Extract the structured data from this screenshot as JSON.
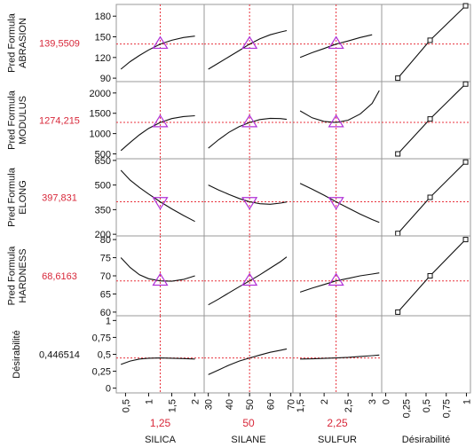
{
  "colors": {
    "current_value": "#d8283a",
    "marker": "#b030d8",
    "crosshair": "#e8323c",
    "curve": "#111111",
    "frame": "#999999",
    "text": "#111111"
  },
  "chart_data": {
    "type": "line",
    "factors": [
      {
        "id": "silica",
        "name": "SILICA",
        "current": 1.25,
        "current_label": "1,25",
        "range": [
          0.3,
          2.2
        ],
        "ticks": [
          0.5,
          1,
          1.5,
          2
        ],
        "tick_labels": [
          "0,5",
          "1",
          "1,5",
          "2"
        ]
      },
      {
        "id": "silane",
        "name": "SILANE",
        "current": 50,
        "current_label": "50",
        "range": [
          28,
          71
        ],
        "ticks": [
          30,
          40,
          50,
          60,
          70
        ],
        "tick_labels": [
          "30",
          "40",
          "50",
          "60",
          "70"
        ]
      },
      {
        "id": "sulfur",
        "name": "SULFUR",
        "current": 2.25,
        "current_label": "2,25",
        "range": [
          1.35,
          3.2
        ],
        "ticks": [
          1.5,
          2,
          2.5,
          3
        ],
        "tick_labels": [
          "1,5",
          "2",
          "2,5",
          "3"
        ]
      },
      {
        "id": "desirability",
        "name": "Désirabilité",
        "range": [
          -0.05,
          1.05
        ],
        "ticks": [
          0,
          0.25,
          0.5,
          0.75,
          1
        ],
        "tick_labels": [
          "0",
          "0,25",
          "0,5",
          "0,75",
          "1"
        ]
      }
    ],
    "responses": [
      {
        "id": "abrasion",
        "label_line1": "Pred Formula",
        "label_line2": "ABRASION",
        "current_label": "139,5509",
        "current": 139.55,
        "ylim": [
          85,
          197
        ],
        "ticks": [
          90,
          120,
          150,
          180
        ],
        "tick_labels": [
          "90",
          "120",
          "150",
          "180"
        ],
        "traces": [
          {
            "x": [
              0.4,
              0.6,
              0.8,
              1.0,
              1.25,
              1.5,
              1.75,
              2.0
            ],
            "y": [
              103,
              114,
              123,
              131,
              139.5,
              145,
              149,
              151
            ]
          },
          {
            "x": [
              30,
              35,
              40,
              45,
              50,
              55,
              60,
              65,
              68
            ],
            "y": [
              103,
              112,
              121,
              130,
              139.5,
              147,
              153,
              157,
              159
            ]
          },
          {
            "x": [
              1.5,
              1.75,
              2.0,
              2.25,
              2.5,
              2.75,
              3.0
            ],
            "y": [
              120,
              127,
              133,
              139.5,
              144,
              149,
              153
            ]
          }
        ],
        "desirability": {
          "x": [
            0.15,
            0.55,
            0.99
          ],
          "y": [
            90,
            145,
            195
          ]
        }
      },
      {
        "id": "modulus",
        "label_line1": "Pred Formula",
        "label_line2": "MODULUS",
        "current_label": "1274,215",
        "current": 1274.2,
        "ylim": [
          380,
          2280
        ],
        "ticks": [
          500,
          1000,
          1500,
          2000
        ],
        "tick_labels": [
          "500",
          "1000",
          "1500",
          "2000"
        ],
        "traces": [
          {
            "x": [
              0.4,
              0.6,
              0.8,
              1.0,
              1.25,
              1.5,
              1.75,
              2.0
            ],
            "y": [
              580,
              780,
              970,
              1130,
              1274,
              1370,
              1420,
              1440
            ]
          },
          {
            "x": [
              30,
              35,
              40,
              45,
              50,
              55,
              60,
              65,
              68
            ],
            "y": [
              640,
              850,
              1030,
              1170,
              1274,
              1345,
              1375,
              1370,
              1350
            ]
          },
          {
            "x": [
              1.5,
              1.75,
              2.0,
              2.25,
              2.5,
              2.75,
              3.0,
              3.15
            ],
            "y": [
              1560,
              1390,
              1300,
              1274,
              1330,
              1480,
              1740,
              2060
            ]
          }
        ],
        "desirability": {
          "x": [
            0.15,
            0.55,
            0.99
          ],
          "y": [
            500,
            1360,
            2220
          ]
        }
      },
      {
        "id": "elong",
        "label_line1": "Pred Formula",
        "label_line2": "ELONG",
        "current_label": "397,831",
        "current": 397.8,
        "ylim": [
          190,
          660
        ],
        "ticks": [
          200,
          350,
          500,
          650
        ],
        "tick_labels": [
          "200",
          "350",
          "500",
          "650"
        ],
        "traces": [
          {
            "x": [
              0.4,
              0.6,
              0.8,
              1.0,
              1.25,
              1.5,
              1.75,
              2.0
            ],
            "y": [
              590,
              530,
              485,
              445,
              398,
              355,
              315,
              278
            ]
          },
          {
            "x": [
              30,
              35,
              40,
              45,
              50,
              55,
              60,
              65,
              68
            ],
            "y": [
              500,
              470,
              443,
              418,
              398,
              386,
              383,
              390,
              397
            ]
          },
          {
            "x": [
              1.5,
              1.75,
              2.0,
              2.25,
              2.5,
              2.75,
              3.0,
              3.15
            ],
            "y": [
              510,
              475,
              438,
              398,
              360,
              323,
              290,
              272
            ]
          }
        ],
        "desirability": {
          "x": [
            0.15,
            0.55,
            0.99
          ],
          "y": [
            205,
            425,
            640
          ]
        }
      },
      {
        "id": "hardness",
        "label_line1": "Pred Formula",
        "label_line2": "HARDNESS",
        "current_label": "68,6163",
        "current": 68.6,
        "ylim": [
          59,
          81
        ],
        "ticks": [
          60,
          65,
          70,
          75,
          80
        ],
        "tick_labels": [
          "60",
          "65",
          "70",
          "75",
          "80"
        ],
        "traces": [
          {
            "x": [
              0.4,
              0.6,
              0.8,
              1.0,
              1.25,
              1.5,
              1.75,
              2.0
            ],
            "y": [
              75,
              72.3,
              70.3,
              69.2,
              68.6,
              68.5,
              69.0,
              70.0
            ]
          },
          {
            "x": [
              30,
              35,
              40,
              45,
              50,
              55,
              60,
              65,
              68
            ],
            "y": [
              62,
              63.6,
              65.3,
              67.0,
              68.6,
              70.3,
              72.1,
              73.9,
              75.2
            ]
          },
          {
            "x": [
              1.5,
              1.75,
              2.0,
              2.25,
              2.5,
              2.75,
              3.0,
              3.15
            ],
            "y": [
              65.5,
              66.6,
              67.6,
              68.6,
              69.3,
              70.0,
              70.5,
              70.8
            ]
          }
        ],
        "desirability": {
          "x": [
            0.15,
            0.55,
            0.99
          ],
          "y": [
            60,
            70,
            80
          ]
        }
      },
      {
        "id": "desirability",
        "label_line1": "Désirabilité",
        "label_line2": "",
        "current_label": "0,446514",
        "current": 0.4465,
        "ylim": [
          -0.07,
          1.07
        ],
        "ticks": [
          0,
          0.25,
          0.5,
          0.75,
          1
        ],
        "tick_labels": [
          "0",
          "0,25",
          "0,5",
          "0,75",
          "1"
        ],
        "traces": [
          {
            "x": [
              0.4,
              0.6,
              0.8,
              1.0,
              1.25,
              1.5,
              1.75,
              2.0
            ],
            "y": [
              0.35,
              0.4,
              0.43,
              0.443,
              0.4465,
              0.443,
              0.437,
              0.43
            ]
          },
          {
            "x": [
              30,
              35,
              40,
              45,
              50,
              55,
              60,
              65,
              68
            ],
            "y": [
              0.2,
              0.27,
              0.34,
              0.4,
              0.4465,
              0.49,
              0.53,
              0.56,
              0.58
            ]
          },
          {
            "x": [
              1.5,
              1.75,
              2.0,
              2.25,
              2.5,
              2.75,
              3.0,
              3.15
            ],
            "y": [
              0.43,
              0.433,
              0.44,
              0.4465,
              0.456,
              0.468,
              0.48,
              0.49
            ]
          }
        ],
        "desirability": null
      }
    ]
  }
}
